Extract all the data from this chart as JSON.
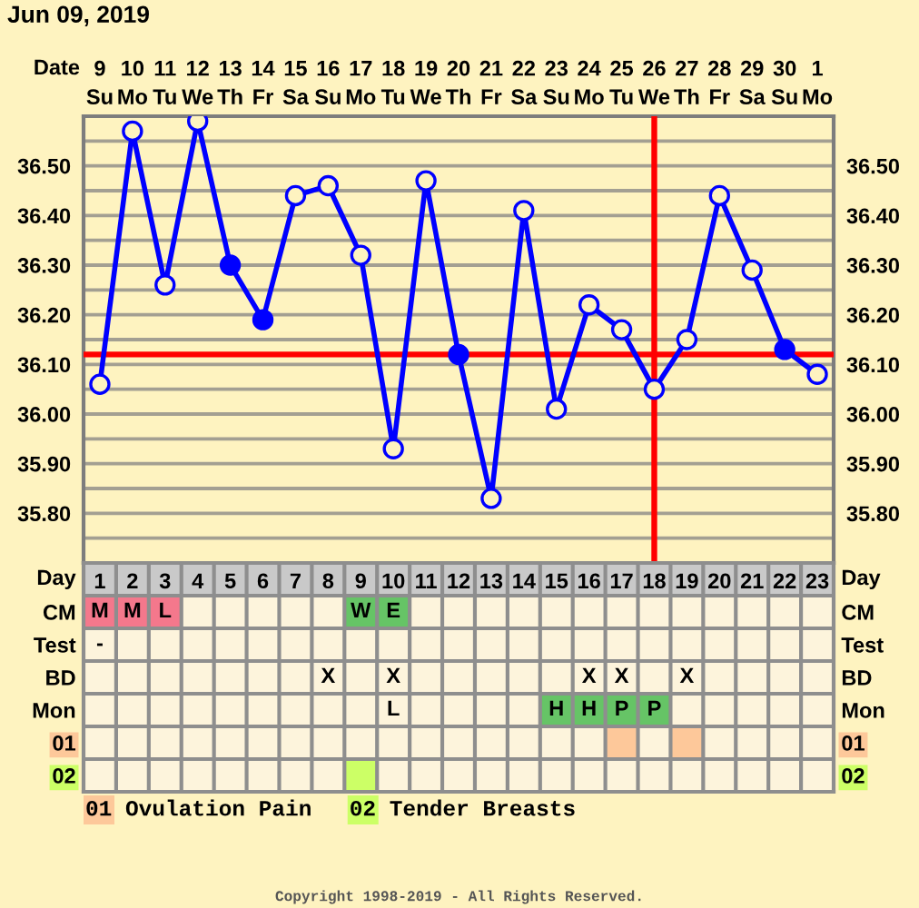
{
  "chart_data": [
    {
      "type": "line",
      "title": "Jun 09, 2019",
      "xlabel": "Date",
      "x": [
        "2019-06-09",
        "2019-06-10",
        "2019-06-11",
        "2019-06-12",
        "2019-06-13",
        "2019-06-14",
        "2019-06-15",
        "2019-06-16",
        "2019-06-17",
        "2019-06-18",
        "2019-06-19",
        "2019-06-20",
        "2019-06-21",
        "2019-06-22",
        "2019-06-23",
        "2019-06-24",
        "2019-06-25",
        "2019-06-26",
        "2019-06-27",
        "2019-06-28",
        "2019-06-29",
        "2019-06-30",
        "2019-07-01"
      ],
      "series": [
        {
          "color": "#0000ff",
          "values": [
            36.06,
            36.57,
            36.26,
            36.59,
            36.3,
            36.19,
            36.44,
            36.46,
            36.32,
            35.93,
            36.47,
            36.12,
            35.83,
            36.41,
            36.01,
            36.22,
            36.17,
            36.05,
            36.15,
            36.44,
            36.29,
            36.13,
            36.08
          ],
          "colors": [
            "#fef3c0",
            "#fef3c0",
            "#fef3c0",
            "#fef3c0",
            "#0000ff",
            "#0000ff",
            "#fef3c0",
            "#fef3c0",
            "#fef3c0",
            "#fef3c0",
            "#fef3c0",
            "#0000ff",
            "#fef3c0",
            "#fef3c0",
            "#fef3c0",
            "#fef3c0",
            "#fef3c0",
            "#fef3c0",
            "#fef3c0",
            "#fef3c0",
            "#fef3c0",
            "#0000ff",
            "#fef3c0"
          ]
        }
      ],
      "xlim": [
        "2019-06-08T12:00",
        "2019-07-01T12:00"
      ],
      "xticks": [
        {
          "value": "2019-06-09",
          "label": "9\nSu"
        },
        {
          "value": "2019-06-10",
          "label": "10\nMo"
        },
        {
          "value": "2019-06-11",
          "label": "11\nTu"
        },
        {
          "value": "2019-06-12",
          "label": "12\nWe"
        },
        {
          "value": "2019-06-13",
          "label": "13\nTh"
        },
        {
          "value": "2019-06-14",
          "label": "14\nFr"
        },
        {
          "value": "2019-06-15",
          "label": "15\nSa"
        },
        {
          "value": "2019-06-16",
          "label": "16\nSu"
        },
        {
          "value": "2019-06-17",
          "label": "17\nMo"
        },
        {
          "value": "2019-06-18",
          "label": "18\nTu"
        },
        {
          "value": "2019-06-19",
          "label": "19\nWe"
        },
        {
          "value": "2019-06-20",
          "label": "20\nTh"
        },
        {
          "value": "2019-06-21",
          "label": "21\nFr"
        },
        {
          "value": "2019-06-22",
          "label": "22\nSa"
        },
        {
          "value": "2019-06-23",
          "label": "23\nSu"
        },
        {
          "value": "2019-06-24",
          "label": "24\nMo"
        },
        {
          "value": "2019-06-25",
          "label": "25\nTu"
        },
        {
          "value": "2019-06-26",
          "label": "26\nWe"
        },
        {
          "value": "2019-06-27",
          "label": "27\nTh"
        },
        {
          "value": "2019-06-28",
          "label": "28\nFr"
        },
        {
          "value": "2019-06-29",
          "label": "29\nSa"
        },
        {
          "value": "2019-06-30",
          "label": "30\nSu"
        },
        {
          "value": "2019-07-01",
          "label": "1\nMo"
        }
      ],
      "ylim": [
        35.7,
        36.6
      ],
      "yticks": [
        {
          "value": 35.75,
          "label": null
        },
        {
          "value": 35.8,
          "label": "35.80"
        },
        {
          "value": 35.85,
          "label": null
        },
        {
          "value": 35.9,
          "label": "35.90"
        },
        {
          "value": 35.95,
          "label": null
        },
        {
          "value": 36.0,
          "label": "36.00"
        },
        {
          "value": 36.05,
          "label": null
        },
        {
          "value": 36.1,
          "label": "36.10"
        },
        {
          "value": 36.15,
          "label": null
        },
        {
          "value": 36.2,
          "label": "36.20"
        },
        {
          "value": 36.25,
          "label": null
        },
        {
          "value": 36.3,
          "label": "36.30"
        },
        {
          "value": 36.35,
          "label": null
        },
        {
          "value": 36.4,
          "label": "36.40"
        },
        {
          "value": 36.45,
          "label": null
        },
        {
          "value": 36.5,
          "label": "36.50"
        },
        {
          "value": 36.55,
          "label": null
        }
      ],
      "y2lim": [
        35.7,
        36.6
      ],
      "y2ticks": [
        {
          "value": 35.75,
          "label": null
        },
        {
          "value": 35.8,
          "label": "35.80"
        },
        {
          "value": 35.85,
          "label": null
        },
        {
          "value": 35.9,
          "label": "35.90"
        },
        {
          "value": 35.95,
          "label": null
        },
        {
          "value": 36.0,
          "label": "36.00"
        },
        {
          "value": 36.05,
          "label": null
        },
        {
          "value": 36.1,
          "label": "36.10"
        },
        {
          "value": 36.15,
          "label": null
        },
        {
          "value": 36.2,
          "label": "36.20"
        },
        {
          "value": 36.25,
          "label": null
        },
        {
          "value": 36.3,
          "label": "36.30"
        },
        {
          "value": 36.35,
          "label": null
        },
        {
          "value": 36.4,
          "label": "36.40"
        },
        {
          "value": 36.45,
          "label": null
        },
        {
          "value": 36.5,
          "label": "36.50"
        },
        {
          "value": 36.55,
          "label": null
        }
      ],
      "ref_lines": [
        {
          "axis": "y",
          "value": 36.12,
          "color": "#ff0000"
        },
        {
          "axis": "x",
          "value": "2019-06-26",
          "color": "#ff0000"
        }
      ],
      "grid": true,
      "marker": "circle",
      "line_style": "solid"
    },
    {
      "type": "heatmap",
      "xlabel": "Day",
      "categories": [
        "1",
        "2",
        "3",
        "4",
        "5",
        "6",
        "7",
        "8",
        "9",
        "10",
        "11",
        "12",
        "13",
        "14",
        "15",
        "16",
        "17",
        "18",
        "19",
        "20",
        "21",
        "22",
        "23"
      ],
      "y_categories": [
        "CM",
        "Test",
        "BD",
        "Mon",
        "01",
        "02"
      ],
      "y2_categories": [
        "CM",
        "Test",
        "BD",
        "Mon",
        "01",
        "02"
      ],
      "cells": [
        [
          null,
          null,
          null,
          null,
          null,
          null,
          null,
          null,
          null,
          null,
          null,
          null,
          null,
          null,
          null,
          null,
          null,
          null,
          null,
          null,
          null,
          null,
          null
        ],
        [
          null,
          null,
          null,
          null,
          null,
          null,
          null,
          null,
          null,
          null,
          null,
          null,
          null,
          null,
          null,
          null,
          null,
          null,
          null,
          null,
          null,
          null,
          null
        ],
        [
          null,
          null,
          null,
          null,
          null,
          null,
          null,
          null,
          null,
          null,
          null,
          null,
          null,
          null,
          null,
          null,
          null,
          null,
          null,
          null,
          null,
          null,
          null
        ],
        [
          null,
          null,
          null,
          null,
          null,
          null,
          null,
          null,
          null,
          null,
          null,
          null,
          null,
          null,
          null,
          null,
          null,
          null,
          null,
          null,
          null,
          null,
          null
        ],
        [
          null,
          null,
          null,
          null,
          null,
          null,
          null,
          null,
          null,
          null,
          null,
          null,
          null,
          null,
          null,
          null,
          null,
          null,
          null,
          null,
          null,
          null,
          null
        ],
        [
          null,
          null,
          null,
          null,
          null,
          null,
          null,
          null,
          null,
          null,
          null,
          null,
          null,
          null,
          null,
          null,
          null,
          null,
          null,
          null,
          null,
          null,
          null
        ]
      ],
      "cell_labels": [
        [
          "M",
          "M",
          "L",
          null,
          null,
          null,
          null,
          null,
          "W",
          "E",
          null,
          null,
          null,
          null,
          null,
          null,
          null,
          null,
          null,
          null,
          null,
          null,
          null
        ],
        [
          "-",
          null,
          null,
          null,
          null,
          null,
          null,
          null,
          null,
          null,
          null,
          null,
          null,
          null,
          null,
          null,
          null,
          null,
          null,
          null,
          null,
          null,
          null
        ],
        [
          null,
          null,
          null,
          null,
          null,
          null,
          null,
          "X",
          null,
          "X",
          null,
          null,
          null,
          null,
          null,
          "X",
          "X",
          null,
          "X",
          null,
          null,
          null,
          null
        ],
        [
          null,
          null,
          null,
          null,
          null,
          null,
          null,
          null,
          null,
          "L",
          null,
          null,
          null,
          null,
          "H",
          "H",
          "P",
          "P",
          null,
          null,
          null,
          null,
          null
        ],
        [
          null,
          null,
          null,
          null,
          null,
          null,
          null,
          null,
          null,
          null,
          null,
          null,
          null,
          null,
          null,
          null,
          null,
          null,
          null,
          null,
          null,
          null,
          null
        ],
        [
          null,
          null,
          null,
          null,
          null,
          null,
          null,
          null,
          null,
          null,
          null,
          null,
          null,
          null,
          null,
          null,
          null,
          null,
          null,
          null,
          null,
          null,
          null
        ]
      ],
      "colors": [
        [
          "#f4788c",
          "#f4788c",
          "#f4788c",
          null,
          null,
          null,
          null,
          null,
          "#66c466",
          "#66c466",
          null,
          null,
          null,
          null,
          null,
          null,
          null,
          null,
          null,
          null,
          null,
          null,
          null
        ],
        [
          null,
          null,
          null,
          null,
          null,
          null,
          null,
          null,
          null,
          null,
          null,
          null,
          null,
          null,
          null,
          null,
          null,
          null,
          null,
          null,
          null,
          null,
          null
        ],
        [
          null,
          null,
          null,
          null,
          null,
          null,
          null,
          null,
          null,
          null,
          null,
          null,
          null,
          null,
          null,
          null,
          null,
          null,
          null,
          null,
          null,
          null,
          null
        ],
        [
          null,
          null,
          null,
          null,
          null,
          null,
          null,
          null,
          null,
          null,
          null,
          null,
          null,
          null,
          "#66c466",
          "#66c466",
          "#66c466",
          "#66c466",
          null,
          null,
          null,
          null,
          null
        ],
        [
          null,
          null,
          null,
          null,
          null,
          null,
          null,
          null,
          null,
          null,
          null,
          null,
          null,
          null,
          null,
          null,
          "#fdc89a",
          null,
          "#fdc89a",
          null,
          null,
          null,
          null
        ],
        [
          null,
          null,
          null,
          null,
          null,
          null,
          null,
          null,
          "#ccff66",
          null,
          null,
          null,
          null,
          null,
          null,
          null,
          null,
          null,
          null,
          null,
          null,
          null,
          null
        ]
      ],
      "grid": true,
      "annotations": [
        "01 Ovulation Pain",
        "02 Tender Breasts",
        "Copyright 1998-2019 - All Rights Reserved."
      ]
    }
  ]
}
